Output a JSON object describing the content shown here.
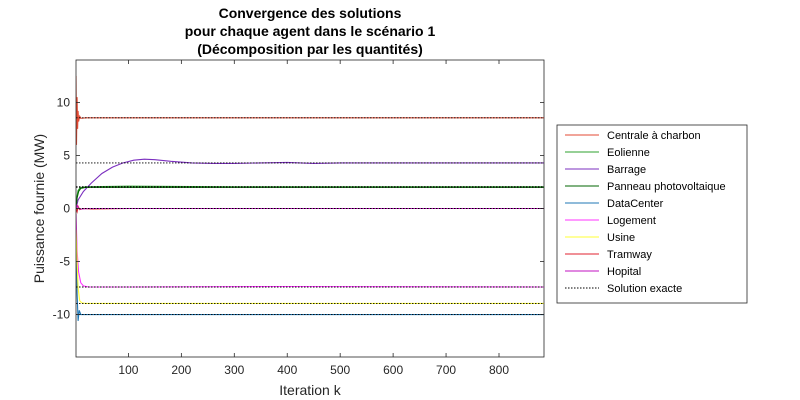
{
  "chart_data": {
    "type": "line",
    "title": [
      "Convergence des solutions",
      "pour chaque agent dans le scénario 1",
      "(Décomposition par les quantités)"
    ],
    "xlabel": "Iteration k",
    "ylabel": "Puissance fournie (MW)",
    "xlim": [
      1,
      885
    ],
    "ylim": [
      -14,
      14
    ],
    "xticks": [
      100,
      200,
      300,
      400,
      500,
      600,
      700,
      800
    ],
    "yticks": [
      -10,
      -5,
      0,
      5,
      10
    ],
    "grid": false,
    "legend_position": "right",
    "series": [
      {
        "name": "Centrale à charbon",
        "color": "#e34a33",
        "points": [
          [
            1,
            12.5
          ],
          [
            2,
            6
          ],
          [
            3,
            10.5
          ],
          [
            4,
            7.5
          ],
          [
            5,
            9.2
          ],
          [
            6,
            8.2
          ],
          [
            8,
            8.7
          ],
          [
            10,
            8.5
          ],
          [
            20,
            8.55
          ],
          [
            100,
            8.55
          ],
          [
            300,
            8.55
          ],
          [
            600,
            8.55
          ],
          [
            885,
            8.55
          ]
        ]
      },
      {
        "name": "Eolienne",
        "color": "#2ca02c",
        "points": [
          [
            1,
            0
          ],
          [
            3,
            1.2
          ],
          [
            5,
            1.7
          ],
          [
            8,
            1.9
          ],
          [
            12,
            2.0
          ],
          [
            20,
            2.05
          ],
          [
            100,
            2.1
          ],
          [
            300,
            2.05
          ],
          [
            600,
            2.05
          ],
          [
            885,
            2.05
          ]
        ]
      },
      {
        "name": "Barrage",
        "color": "#7b2fbf",
        "points": [
          [
            1,
            0
          ],
          [
            5,
            0.8
          ],
          [
            15,
            1.6
          ],
          [
            30,
            2.4
          ],
          [
            50,
            3.3
          ],
          [
            70,
            3.9
          ],
          [
            90,
            4.3
          ],
          [
            110,
            4.55
          ],
          [
            130,
            4.65
          ],
          [
            150,
            4.6
          ],
          [
            180,
            4.45
          ],
          [
            220,
            4.3
          ],
          [
            260,
            4.25
          ],
          [
            300,
            4.25
          ],
          [
            350,
            4.3
          ],
          [
            400,
            4.35
          ],
          [
            450,
            4.25
          ],
          [
            500,
            4.3
          ],
          [
            600,
            4.3
          ],
          [
            700,
            4.3
          ],
          [
            800,
            4.3
          ],
          [
            885,
            4.3
          ]
        ]
      },
      {
        "name": "Panneau photovoltaique",
        "color": "#006400",
        "points": [
          [
            1,
            0
          ],
          [
            3,
            1.0
          ],
          [
            6,
            1.6
          ],
          [
            10,
            1.9
          ],
          [
            20,
            2.0
          ],
          [
            100,
            2.0
          ],
          [
            400,
            2.0
          ],
          [
            885,
            2.0
          ]
        ]
      },
      {
        "name": "DataCenter",
        "color": "#1f77b4",
        "points": [
          [
            1,
            -2
          ],
          [
            3,
            -8
          ],
          [
            5,
            -10.6
          ],
          [
            7,
            -9.6
          ],
          [
            10,
            -10
          ],
          [
            20,
            -10
          ],
          [
            100,
            -10
          ],
          [
            400,
            -10
          ],
          [
            885,
            -10
          ]
        ]
      },
      {
        "name": "Logement",
        "color": "#ff33ff",
        "points": [
          [
            1,
            -0.5
          ],
          [
            3,
            -4
          ],
          [
            6,
            -6
          ],
          [
            10,
            -7
          ],
          [
            15,
            -7.3
          ],
          [
            25,
            -7.4
          ],
          [
            100,
            -7.4
          ],
          [
            400,
            -7.35
          ],
          [
            885,
            -7.4
          ]
        ]
      },
      {
        "name": "Usine",
        "color": "#ffff33",
        "points": [
          [
            1,
            -2
          ],
          [
            3,
            -5
          ],
          [
            5,
            -7.5
          ],
          [
            8,
            -8.7
          ],
          [
            12,
            -8.9
          ],
          [
            20,
            -8.95
          ],
          [
            100,
            -8.95
          ],
          [
            400,
            -8.95
          ],
          [
            885,
            -8.95
          ]
        ]
      },
      {
        "name": "Tramway",
        "color": "#e0202f",
        "points": [
          [
            1,
            0
          ],
          [
            3,
            -0.3
          ],
          [
            5,
            0.2
          ],
          [
            8,
            -0.1
          ],
          [
            15,
            0
          ],
          [
            30,
            -0.05
          ],
          [
            100,
            0
          ],
          [
            400,
            0
          ],
          [
            885,
            0
          ]
        ]
      },
      {
        "name": "Hopital",
        "color": "#c010c0",
        "points": [
          [
            1,
            0
          ],
          [
            3,
            0.3
          ],
          [
            6,
            0
          ],
          [
            10,
            -0.05
          ],
          [
            30,
            0
          ],
          [
            100,
            0
          ],
          [
            400,
            0
          ],
          [
            885,
            0
          ]
        ]
      },
      {
        "name": "Solution exacte",
        "color": "#000000",
        "dashed": true,
        "lines": [
          8.55,
          2.05,
          4.3,
          2.0,
          -10.0,
          -7.4,
          -8.95,
          0.0,
          0.0
        ]
      }
    ]
  }
}
